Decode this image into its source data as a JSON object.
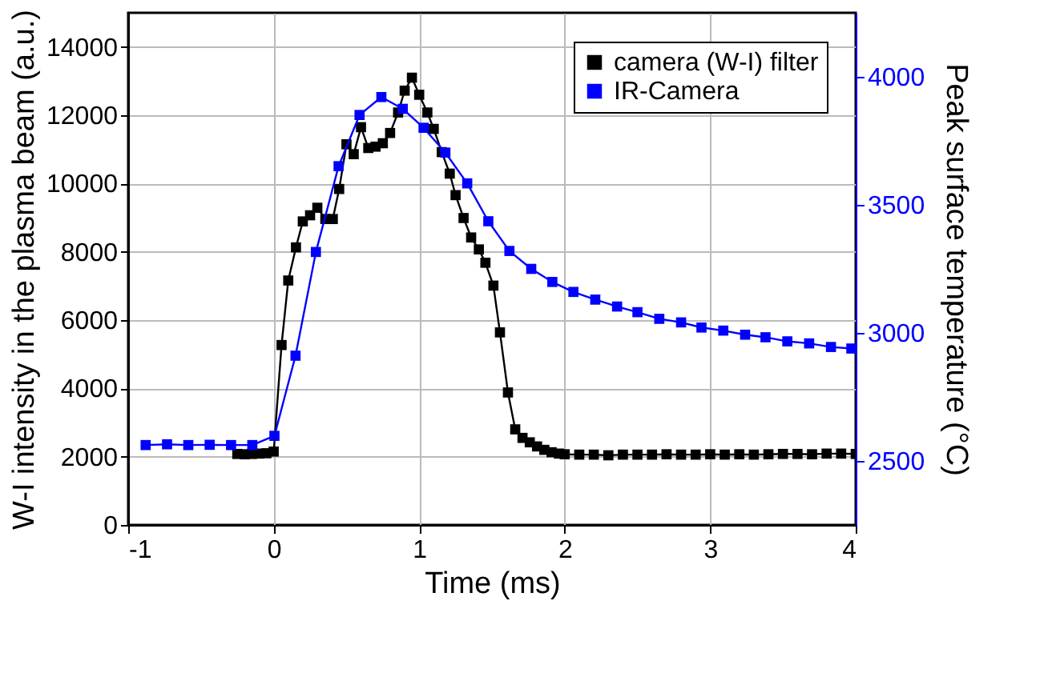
{
  "chart_data": {
    "type": "line",
    "xlabel": "Time (ms)",
    "ylabel": "W-I intensity in the plasma beam (a.u.)",
    "y2label": "Peak surface temperature (°C)",
    "xlim": [
      -1,
      4
    ],
    "xticks": [
      -1,
      0,
      1,
      2,
      3,
      4
    ],
    "ylim": [
      0,
      15000
    ],
    "yticks": [
      0,
      2000,
      4000,
      6000,
      8000,
      10000,
      12000,
      14000
    ],
    "y2lim": [
      2250,
      4250
    ],
    "y2ticks": [
      2500,
      3000,
      3500,
      4000
    ],
    "grid": true,
    "legend": "top right",
    "marker": "square",
    "line_style": "solid",
    "series": [
      {
        "name": "camera (W-I) filter",
        "color": "#000000",
        "x": [
          -0.25,
          -0.2,
          -0.15,
          -0.1,
          -0.05,
          0.0,
          0.054,
          0.1,
          0.153,
          0.2,
          0.25,
          0.3,
          0.355,
          0.406,
          0.45,
          0.5,
          0.55,
          0.6,
          0.65,
          0.7,
          0.75,
          0.8,
          0.855,
          0.9,
          0.95,
          1.0,
          1.056,
          1.1,
          1.155,
          1.21,
          1.25,
          1.305,
          1.357,
          1.41,
          1.455,
          1.51,
          1.555,
          1.61,
          1.66,
          1.71,
          1.76,
          1.81,
          1.86,
          1.91,
          1.96,
          2.0,
          2.1,
          2.2,
          2.3,
          2.4,
          2.5,
          2.6,
          2.7,
          2.8,
          2.9,
          3.0,
          3.1,
          3.2,
          3.3,
          3.4,
          3.5,
          3.6,
          3.7,
          3.8,
          3.9,
          4.0
        ],
        "values": [
          2080,
          2070,
          2080,
          2090,
          2100,
          2150,
          5270,
          7160,
          8130,
          8890,
          9070,
          9290,
          8960,
          8960,
          9840,
          11150,
          10860,
          11650,
          11040,
          11080,
          11180,
          11480,
          12080,
          12720,
          13100,
          12600,
          12080,
          11600,
          10920,
          10290,
          9660,
          8990,
          8420,
          8070,
          7680,
          7010,
          5640,
          3880,
          2800,
          2550,
          2420,
          2300,
          2200,
          2130,
          2090,
          2070,
          2060,
          2060,
          2040,
          2060,
          2060,
          2060,
          2070,
          2060,
          2060,
          2070,
          2060,
          2070,
          2060,
          2070,
          2080,
          2080,
          2070,
          2090,
          2090,
          2080
        ]
      },
      {
        "name": "IR-Camera",
        "color": "#0000ff",
        "axis": "y2",
        "x": [
          -0.88,
          -0.733,
          -0.587,
          -0.44,
          -0.293,
          -0.147,
          0.005,
          0.15,
          0.29,
          0.446,
          0.59,
          0.74,
          0.887,
          1.03,
          1.18,
          1.33,
          1.475,
          1.62,
          1.77,
          1.915,
          2.06,
          2.21,
          2.36,
          2.5,
          2.65,
          2.8,
          2.94,
          3.09,
          3.24,
          3.38,
          3.53,
          3.68,
          3.83,
          3.97
        ],
        "values": [
          2562,
          2565,
          2562,
          2563,
          2562,
          2562,
          2598,
          2911,
          3316,
          3651,
          3851,
          3921,
          3875,
          3801,
          3704,
          3584,
          3436,
          3320,
          3250,
          3199,
          3160,
          3130,
          3103,
          3081,
          3055,
          3041,
          3021,
          3009,
          2993,
          2983,
          2967,
          2959,
          2945,
          2939
        ]
      }
    ]
  }
}
